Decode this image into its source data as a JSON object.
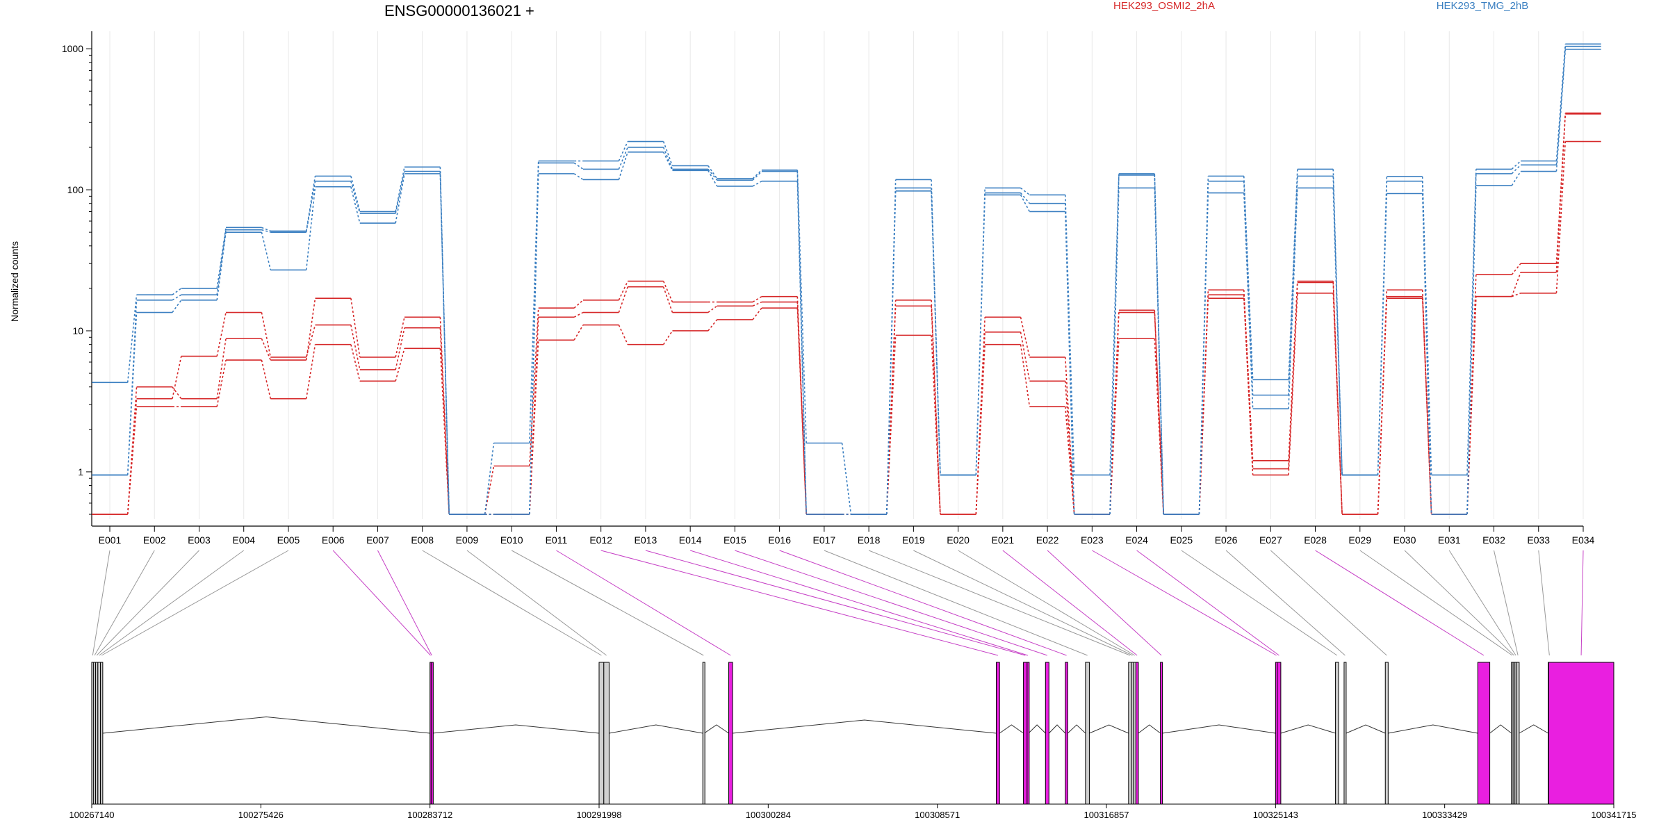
{
  "chart_data": {
    "type": "line",
    "title": "ENSG00000136021 +",
    "ylabel": "Normalized counts",
    "yscale": "log",
    "ylim": [
      0.5,
      1300
    ],
    "y_ticks": [
      1,
      10,
      100,
      1000
    ],
    "y_tick_labels": [
      "1",
      "10",
      "100",
      "1000"
    ],
    "grid": "vertical",
    "legend_position": "top",
    "colors": {
      "HEK293_OSMI2_2hA": "#d62728",
      "HEK293_TMG_2hB": "#3a7fc1",
      "differential_exon": "#e91fe0",
      "exon_border": "#000000",
      "exon_fill": "#d0d0d0"
    },
    "categories": [
      "E001",
      "E002",
      "E003",
      "E004",
      "E005",
      "E006",
      "E007",
      "E008",
      "E009",
      "E010",
      "E011",
      "E012",
      "E013",
      "E014",
      "E015",
      "E016",
      "E017",
      "E018",
      "E019",
      "E020",
      "E021",
      "E022",
      "E023",
      "E024",
      "E025",
      "E026",
      "E027",
      "E028",
      "E029",
      "E030",
      "E031",
      "E032",
      "E033",
      "E034"
    ],
    "series": [
      {
        "name": "HEK293_OSMI2_2hA",
        "group": "HEK293_OSMI2_2hA",
        "values": [
          0.5,
          4,
          3.3,
          8.8,
          6.2,
          17,
          6.5,
          12.5,
          0.5,
          1.1,
          14.5,
          16.5,
          22.5,
          16,
          16,
          17.5,
          0.5,
          0.5,
          16.5,
          0.5,
          12.5,
          6.5,
          0.5,
          14,
          0.5,
          19.5,
          1.2,
          22.5,
          0.5,
          19.5,
          0.5,
          25,
          30,
          350
        ]
      },
      {
        "name": "HEK293_OSMI2_2hA",
        "group": "HEK293_OSMI2_2hA",
        "values": [
          0.5,
          3.3,
          6.6,
          13.5,
          6.5,
          11,
          5.3,
          10.5,
          0.5,
          0.5,
          12.5,
          13.5,
          20.5,
          13.5,
          15,
          16,
          0.5,
          0.5,
          15,
          0.5,
          9.8,
          4.4,
          0.5,
          13.5,
          0.5,
          18,
          1.05,
          22,
          0.5,
          17.5,
          0.5,
          17.5,
          26,
          345
        ]
      },
      {
        "name": "HEK293_OSMI2_2hA",
        "group": "HEK293_OSMI2_2hA",
        "values": [
          0.5,
          2.9,
          2.9,
          6.2,
          3.3,
          8,
          4.4,
          7.5,
          0.5,
          0.5,
          8.6,
          11,
          8,
          10,
          12,
          14.5,
          0.5,
          0.5,
          9.3,
          0.5,
          8,
          2.9,
          0.5,
          8.8,
          0.5,
          17,
          0.95,
          18.5,
          0.5,
          17,
          0.5,
          17.5,
          18.5,
          220
        ]
      },
      {
        "name": "HEK293_TMG_2hB",
        "group": "HEK293_TMG_2hB",
        "values": [
          4.3,
          18,
          20,
          54,
          51,
          125,
          70,
          145,
          0.5,
          1.6,
          160,
          160,
          220,
          148,
          120,
          138,
          1.6,
          0.5,
          118,
          0.95,
          103,
          92,
          0.95,
          130,
          0.5,
          125,
          4.5,
          140,
          0.95,
          124,
          0.95,
          140,
          160,
          1080
        ]
      },
      {
        "name": "HEK293_TMG_2hB",
        "group": "HEK293_TMG_2hB",
        "values": [
          0.95,
          16.5,
          18,
          52,
          50,
          115,
          68,
          135,
          0.5,
          0.5,
          155,
          140,
          200,
          140,
          117,
          135,
          0.5,
          0.5,
          103,
          0.95,
          95,
          80,
          0.5,
          127,
          0.5,
          115,
          3.5,
          125,
          0.95,
          115,
          0.5,
          130,
          150,
          1040
        ]
      },
      {
        "name": "HEK293_TMG_2hB",
        "group": "HEK293_TMG_2hB",
        "values": [
          0.95,
          13.5,
          16.5,
          50,
          27,
          105,
          58,
          130,
          0.5,
          0.5,
          130,
          118,
          185,
          137,
          106,
          115,
          0.5,
          0.5,
          98,
          0.95,
          92,
          70,
          0.5,
          103,
          0.5,
          95,
          2.8,
          103,
          0.95,
          94,
          0.5,
          107,
          135,
          990
        ]
      }
    ],
    "differential_exons": [
      "E006",
      "E007",
      "E011",
      "E012",
      "E013",
      "E014",
      "E015",
      "E016",
      "E021",
      "E022",
      "E023",
      "E024",
      "E028",
      "E034"
    ],
    "gene_model": {
      "coord_start": 100267140,
      "coord_end": 100341715,
      "axis_ticks": [
        100267140,
        100275426,
        100283712,
        100291998,
        100300284,
        100308571,
        100316857,
        100325143,
        100333429,
        100341715
      ],
      "axis_tick_labels": [
        "100267140",
        "100275426",
        "100283712",
        "100291998",
        "100300284",
        "100308571",
        "100316857",
        "100325143",
        "100333429",
        "100341715"
      ],
      "exons": [
        {
          "id": "E001",
          "start": 100267140,
          "end": 100267230
        },
        {
          "id": "E002",
          "start": 100267230,
          "end": 100267330
        },
        {
          "id": "E003",
          "start": 100267330,
          "end": 100267440
        },
        {
          "id": "E004",
          "start": 100267440,
          "end": 100267570
        },
        {
          "id": "E005",
          "start": 100267570,
          "end": 100267680
        },
        {
          "id": "E006",
          "start": 100283712,
          "end": 100283770
        },
        {
          "id": "E007",
          "start": 100283770,
          "end": 100283830
        },
        {
          "id": "E008",
          "start": 100291998,
          "end": 100292230
        },
        {
          "id": "E009",
          "start": 100292230,
          "end": 100292490
        },
        {
          "id": "E010",
          "start": 100297080,
          "end": 100297150
        },
        {
          "id": "E011",
          "start": 100298350,
          "end": 100298540
        },
        {
          "id": "E012",
          "start": 100311460,
          "end": 100311620
        },
        {
          "id": "E013",
          "start": 100312790,
          "end": 100312970
        },
        {
          "id": "E014",
          "start": 100312970,
          "end": 100313040
        },
        {
          "id": "E015",
          "start": 100313870,
          "end": 100314040
        },
        {
          "id": "E016",
          "start": 100314840,
          "end": 100314960
        },
        {
          "id": "E017",
          "start": 100315830,
          "end": 100316020
        },
        {
          "id": "E018",
          "start": 100317940,
          "end": 100318080
        },
        {
          "id": "E019",
          "start": 100318080,
          "end": 100318190
        },
        {
          "id": "E020",
          "start": 100318190,
          "end": 100318300
        },
        {
          "id": "E021",
          "start": 100318300,
          "end": 100318420
        },
        {
          "id": "E022",
          "start": 100319500,
          "end": 100319600
        },
        {
          "id": "E023",
          "start": 100325143,
          "end": 100325230
        },
        {
          "id": "E024",
          "start": 100325230,
          "end": 100325400
        },
        {
          "id": "E025",
          "start": 100328080,
          "end": 100328230
        },
        {
          "id": "E026",
          "start": 100328500,
          "end": 100328600
        },
        {
          "id": "E027",
          "start": 100330520,
          "end": 100330660
        },
        {
          "id": "E028",
          "start": 100335050,
          "end": 100335640
        },
        {
          "id": "E029",
          "start": 100336700,
          "end": 100336780
        },
        {
          "id": "E030",
          "start": 100336780,
          "end": 100336870
        },
        {
          "id": "E031",
          "start": 100336870,
          "end": 100336960
        },
        {
          "id": "E032",
          "start": 100336960,
          "end": 100337080
        },
        {
          "id": "E033",
          "start": 100338500,
          "end": 100338620
        },
        {
          "id": "E034",
          "start": 100338520,
          "end": 100341715
        }
      ],
      "introns": [
        [
          100267680,
          100283712
        ],
        [
          100283830,
          100291998
        ],
        [
          100292490,
          100297080
        ],
        [
          100297150,
          100298350
        ],
        [
          100298540,
          100311460
        ],
        [
          100311620,
          100312790
        ],
        [
          100313040,
          100313870
        ],
        [
          100314040,
          100314840
        ],
        [
          100314960,
          100315830
        ],
        [
          100316020,
          100317940
        ],
        [
          100318420,
          100319500
        ],
        [
          100319600,
          100325143
        ],
        [
          100325400,
          100328080
        ],
        [
          100328600,
          100330520
        ],
        [
          100330660,
          100335050
        ],
        [
          100335640,
          100336700
        ],
        [
          100337080,
          100338500
        ],
        [
          100338620,
          100338520
        ]
      ]
    }
  }
}
